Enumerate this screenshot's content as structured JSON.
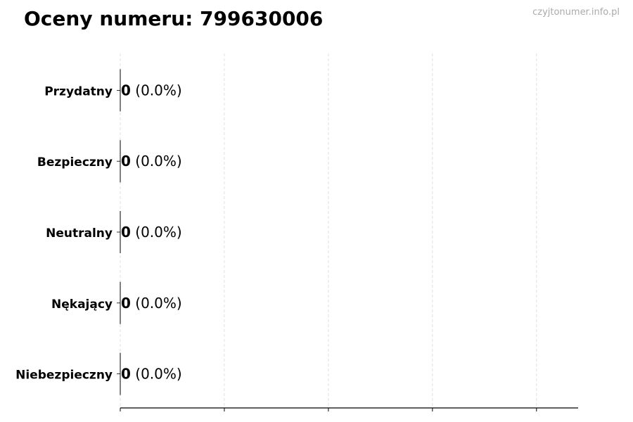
{
  "chart_data": {
    "type": "bar",
    "orientation": "horizontal",
    "title": "Oceny numeru: 799630006",
    "watermark": "czyjtonumer.info.pl",
    "categories": [
      "Przydatny",
      "Bezpieczny",
      "Neutralny",
      "Nękający",
      "Niebezpieczny"
    ],
    "values": [
      0,
      0,
      0,
      0,
      0
    ],
    "data_labels": [
      {
        "count": "0",
        "percent": "(0.0%)"
      },
      {
        "count": "0",
        "percent": "(0.0%)"
      },
      {
        "count": "0",
        "percent": "(0.0%)"
      },
      {
        "count": "0",
        "percent": "(0.0%)"
      },
      {
        "count": "0",
        "percent": "(0.0%)"
      }
    ],
    "xlabel": "",
    "ylabel": "",
    "xlim": [
      0,
      4.4
    ],
    "xticks": [
      0,
      1,
      2,
      3,
      4
    ],
    "x_tick_labels_shown": false,
    "grid": "x, dashed",
    "colors": {
      "grid": "#d9d9d9",
      "axis": "#000000",
      "bar_edge": "#000000",
      "watermark": "#aaaaaa"
    }
  }
}
